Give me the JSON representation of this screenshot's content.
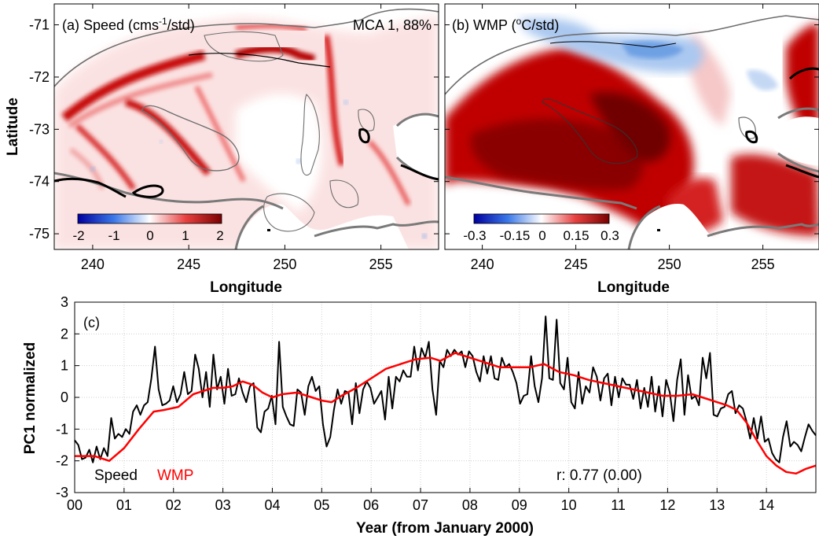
{
  "panel_a": {
    "label_prefix": "(a) Speed (cms",
    "label_sup": "-1",
    "label_suffix": "/std)",
    "annotation": "MCA 1, 88%",
    "colorbar_ticks": [
      "-2",
      "-1",
      "0",
      "1",
      "2"
    ],
    "colorbar_range": [
      -2,
      2
    ]
  },
  "panel_b": {
    "label_prefix": "(b) WMP (",
    "label_sup": "o",
    "label_suffix": "C/std)",
    "colorbar_ticks": [
      "-0.3",
      "-0.15",
      "0",
      "0.15",
      "0.3"
    ],
    "colorbar_range": [
      -0.3,
      0.3
    ]
  },
  "maps": {
    "ylabel": "Latitude",
    "xlabel": "Longitude",
    "xticks": [
      "240",
      "245",
      "250",
      "255"
    ],
    "xtick_values": [
      240,
      245,
      250,
      255
    ],
    "xlim": [
      238,
      258
    ],
    "yticks": [
      "-71",
      "-72",
      "-73",
      "-74",
      "-75"
    ],
    "ytick_values": [
      -71,
      -72,
      -73,
      -74,
      -75
    ],
    "ylim": [
      -75.3,
      -70.6
    ],
    "colors": {
      "positive": "#c00000",
      "negative": "#0b3fbf",
      "neutral": "#ffffff",
      "land_outline": "#6e6e6e",
      "ice_front": "#000000"
    }
  },
  "chart_data": {
    "type": "line",
    "panel_label": "(c)",
    "xlabel": "Year (from January 2000)",
    "ylabel": "PC1 normalized",
    "xticks": [
      "00",
      "01",
      "02",
      "03",
      "04",
      "05",
      "06",
      "07",
      "08",
      "09",
      "10",
      "11",
      "12",
      "13",
      "14"
    ],
    "xlim": [
      0,
      15
    ],
    "ylim": [
      -3,
      3
    ],
    "yticks": [
      "3",
      "2",
      "1",
      "0",
      "-1",
      "-2",
      "-3"
    ],
    "grid": true,
    "annotation": "r: 0.77 (0.00)",
    "series": [
      {
        "name": "Speed",
        "color": "#000000",
        "values": [
          -1.35,
          -1.5,
          -1.95,
          -1.9,
          -1.65,
          -2.05,
          -1.55,
          -1.95,
          -1.6,
          -1.85,
          -0.65,
          -1.3,
          -1.15,
          -1.25,
          -1.0,
          -1.15,
          -0.45,
          -0.25,
          -0.55,
          -0.25,
          -0.15,
          0.6,
          1.6,
          0.25,
          -0.25,
          -0.2,
          -0.1,
          0.35,
          -0.15,
          0.1,
          0.8,
          0.1,
          0.2,
          1.35,
          0.9,
          0.0,
          0.8,
          -0.3,
          1.35,
          0.25,
          0.65,
          -0.2,
          0.9,
          0.05,
          0.1,
          0.6,
          0.15,
          -0.15,
          0.35,
          0.45,
          -0.95,
          -1.1,
          -0.45,
          -0.35,
          0.05,
          -0.85,
          1.75,
          -0.3,
          -0.6,
          -0.85,
          -0.9,
          0.25,
          0.15,
          -0.55,
          0.35,
          0.65,
          0.2,
          0.35,
          -0.85,
          -1.55,
          -1.25,
          -0.4,
          0.25,
          -0.2,
          0.2,
          0.15,
          -0.85,
          0.45,
          -0.5,
          0.25,
          0.5,
          0.3,
          -0.2,
          0.0,
          0.2,
          -0.7,
          0.65,
          -0.35,
          0.65,
          0.5,
          0.85,
          0.65,
          0.65,
          1.6,
          0.85,
          1.55,
          1.25,
          1.75,
          0.25,
          -0.55,
          1.15,
          0.95,
          1.5,
          1.3,
          1.5,
          1.35,
          1.45,
          0.95,
          1.45,
          1.3,
          0.8,
          0.5,
          1.3,
          0.75,
          1.3,
          0.6,
          0.55,
          1.25,
          0.95,
          1.05,
          0.8,
          0.45,
          -0.2,
          0.05,
          0.1,
          1.3,
          0.35,
          -0.15,
          0.6,
          2.55,
          0.6,
          0.55,
          2.45,
          0.45,
          0.25,
          1.25,
          -0.15,
          -0.35,
          0.8,
          -0.2,
          0.35,
          0.15,
          0.95,
          0.65,
          -0.1,
          0.6,
          0.75,
          -0.25,
          0.65,
          0.0,
          0.6,
          0.4,
          0.4,
          -0.05,
          0.55,
          -0.35,
          0.3,
          -0.3,
          0.65,
          -0.45,
          0.35,
          -0.6,
          0.55,
          0.15,
          -0.75,
          0.55,
          1.2,
          -0.55,
          0.7,
          -0.05,
          0.05,
          -0.25,
          1.25,
          0.6,
          1.4,
          -0.55,
          -0.6,
          -0.35,
          -0.3,
          0.1,
          0.2,
          -0.5,
          -0.25,
          -0.35,
          -0.75,
          -1.3,
          -0.65,
          -1.3,
          -0.6,
          -1.4,
          -1.3,
          -1.75,
          -1.95,
          -2.05,
          -1.25,
          -0.75,
          -1.55,
          -1.4,
          -1.5,
          -1.7,
          -1.25,
          -0.85,
          -1.05,
          -1.2
        ]
      },
      {
        "name": "WMP",
        "color": "#ff0000",
        "points": [
          [
            0,
            -1.85
          ],
          [
            0.4,
            -1.85
          ],
          [
            0.7,
            -2.0
          ],
          [
            1.0,
            -1.6
          ],
          [
            1.3,
            -1.0
          ],
          [
            1.6,
            -0.45
          ],
          [
            1.8,
            -0.4
          ],
          [
            2.1,
            -0.3
          ],
          [
            2.4,
            0.1
          ],
          [
            2.6,
            0.2
          ],
          [
            2.8,
            0.3
          ],
          [
            3.0,
            0.3
          ],
          [
            3.2,
            0.35
          ],
          [
            3.4,
            0.5
          ],
          [
            3.6,
            0.4
          ],
          [
            3.8,
            0.15
          ],
          [
            4.0,
            0.0
          ],
          [
            4.2,
            0.1
          ],
          [
            4.5,
            0.15
          ],
          [
            4.8,
            0.0
          ],
          [
            5.0,
            -0.1
          ],
          [
            5.2,
            -0.15
          ],
          [
            5.4,
            0.05
          ],
          [
            5.7,
            0.3
          ],
          [
            6.0,
            0.6
          ],
          [
            6.3,
            0.9
          ],
          [
            6.6,
            1.05
          ],
          [
            6.9,
            1.2
          ],
          [
            7.2,
            1.25
          ],
          [
            7.4,
            1.15
          ],
          [
            7.7,
            1.4
          ],
          [
            8.0,
            1.25
          ],
          [
            8.3,
            1.1
          ],
          [
            8.6,
            0.95
          ],
          [
            8.9,
            0.95
          ],
          [
            9.2,
            0.95
          ],
          [
            9.5,
            1.05
          ],
          [
            9.8,
            0.8
          ],
          [
            10.1,
            0.7
          ],
          [
            10.4,
            0.55
          ],
          [
            10.7,
            0.45
          ],
          [
            11.0,
            0.35
          ],
          [
            11.3,
            0.25
          ],
          [
            11.6,
            0.15
          ],
          [
            11.9,
            0.05
          ],
          [
            12.2,
            0.05
          ],
          [
            12.5,
            0.1
          ],
          [
            12.8,
            -0.05
          ],
          [
            13.0,
            -0.15
          ],
          [
            13.2,
            -0.25
          ],
          [
            13.4,
            -0.4
          ],
          [
            13.6,
            -0.8
          ],
          [
            13.8,
            -1.35
          ],
          [
            14.0,
            -1.85
          ],
          [
            14.2,
            -2.15
          ],
          [
            14.4,
            -2.35
          ],
          [
            14.6,
            -2.4
          ],
          [
            14.8,
            -2.25
          ],
          [
            15.0,
            -2.15
          ]
        ]
      }
    ],
    "legend": [
      "Speed",
      "WMP"
    ],
    "legend_position": "bottom-left"
  }
}
